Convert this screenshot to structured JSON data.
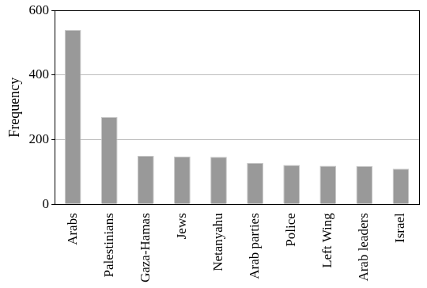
{
  "chart_data": {
    "type": "bar",
    "y_label": "Frequency",
    "categories": [
      "Arabs",
      "Palestinians",
      "Gaza-Hamas",
      "Jews",
      "Netanyahu",
      "Arab parties",
      "Police",
      "Left Wing",
      "Arab leaders",
      "Israel"
    ],
    "values": [
      540,
      270,
      150,
      148,
      147,
      128,
      122,
      119,
      118,
      110
    ],
    "color": "#999999",
    "ylim": [
      0,
      600
    ],
    "yticks": [
      0,
      200,
      400,
      600
    ],
    "grid": true
  }
}
